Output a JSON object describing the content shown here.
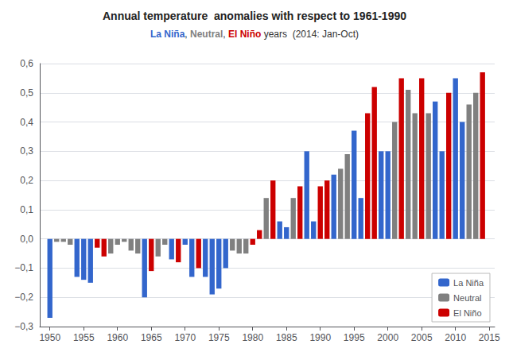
{
  "chart_data": {
    "type": "bar",
    "title": "Annual temperature  anomalies with respect to 1961-1990",
    "subtitle": "La Niña, Neutral, El Niño years  (2014: Jan-Oct)",
    "x": [
      1950,
      1951,
      1952,
      1953,
      1954,
      1955,
      1956,
      1957,
      1958,
      1959,
      1960,
      1961,
      1962,
      1963,
      1964,
      1965,
      1966,
      1967,
      1968,
      1969,
      1970,
      1971,
      1972,
      1973,
      1974,
      1975,
      1976,
      1977,
      1978,
      1979,
      1980,
      1981,
      1982,
      1983,
      1984,
      1985,
      1986,
      1987,
      1988,
      1989,
      1990,
      1991,
      1992,
      1993,
      1994,
      1995,
      1996,
      1997,
      1998,
      1999,
      2000,
      2001,
      2002,
      2003,
      2004,
      2005,
      2006,
      2007,
      2008,
      2009,
      2010,
      2011,
      2012,
      2013,
      2014
    ],
    "series": [
      {
        "name": "La Niña",
        "color": "#3366CC",
        "values": [
          -0.27,
          null,
          null,
          null,
          -0.13,
          -0.14,
          -0.15,
          null,
          null,
          null,
          null,
          null,
          null,
          null,
          -0.2,
          null,
          null,
          null,
          -0.07,
          null,
          -0.02,
          -0.13,
          null,
          -0.13,
          -0.19,
          -0.17,
          -0.1,
          null,
          null,
          null,
          null,
          null,
          null,
          null,
          0.06,
          0.04,
          null,
          null,
          0.3,
          0.06,
          null,
          null,
          0.22,
          null,
          null,
          0.37,
          0.14,
          null,
          null,
          0.3,
          0.3,
          null,
          null,
          null,
          null,
          null,
          null,
          0.47,
          0.3,
          null,
          0.55,
          0.4,
          null,
          null,
          null
        ]
      },
      {
        "name": "Neutral",
        "color": "#808080",
        "values": [
          null,
          -0.01,
          -0.01,
          -0.02,
          null,
          null,
          null,
          null,
          null,
          -0.05,
          -0.02,
          -0.01,
          -0.04,
          -0.05,
          null,
          null,
          -0.06,
          -0.02,
          null,
          null,
          null,
          null,
          null,
          null,
          null,
          null,
          null,
          -0.04,
          -0.05,
          -0.05,
          null,
          null,
          0.14,
          null,
          null,
          null,
          0.14,
          null,
          null,
          null,
          null,
          null,
          null,
          0.24,
          0.29,
          null,
          null,
          null,
          null,
          null,
          null,
          0.4,
          null,
          0.51,
          0.43,
          null,
          0.43,
          null,
          null,
          null,
          null,
          null,
          0.46,
          0.5,
          null
        ]
      },
      {
        "name": "El Niño",
        "color": "#CC0000",
        "values": [
          null,
          null,
          null,
          null,
          null,
          null,
          null,
          -0.03,
          -0.06,
          null,
          null,
          null,
          null,
          null,
          null,
          -0.11,
          null,
          null,
          null,
          -0.08,
          null,
          null,
          -0.1,
          null,
          null,
          null,
          null,
          null,
          null,
          null,
          -0.02,
          0.03,
          null,
          0.2,
          null,
          null,
          null,
          0.18,
          null,
          null,
          0.18,
          0.2,
          null,
          null,
          null,
          null,
          null,
          0.43,
          0.52,
          null,
          null,
          null,
          0.55,
          null,
          null,
          0.55,
          null,
          null,
          null,
          0.5,
          null,
          null,
          null,
          null,
          0.57
        ]
      }
    ],
    "xlim": [
      1948.5,
      2015.8
    ],
    "xticks": [
      1950,
      1955,
      1960,
      1965,
      1970,
      1975,
      1980,
      1985,
      1990,
      1995,
      2000,
      2005,
      2010,
      2015
    ],
    "ylim": [
      -0.3,
      0.6
    ],
    "yticks": [
      {
        "value": -0.3,
        "label": "−0,3"
      },
      {
        "value": -0.2,
        "label": "−0,2"
      },
      {
        "value": -0.1,
        "label": "−0,1"
      },
      {
        "value": 0.0,
        "label": "0,0"
      },
      {
        "value": 0.1,
        "label": "0,1"
      },
      {
        "value": 0.2,
        "label": "0,2"
      },
      {
        "value": 0.3,
        "label": "0,3"
      },
      {
        "value": 0.4,
        "label": "0,4"
      },
      {
        "value": 0.5,
        "label": "0,5"
      },
      {
        "value": 0.6,
        "label": "0,6"
      }
    ],
    "grid": true,
    "legend": "lower right"
  }
}
